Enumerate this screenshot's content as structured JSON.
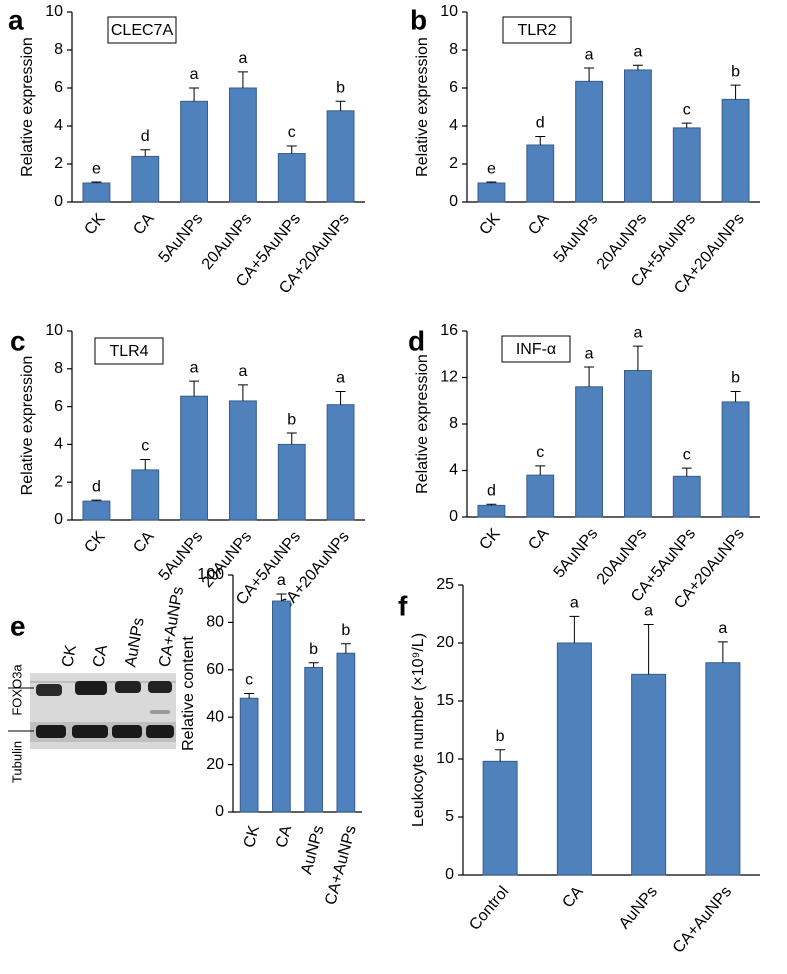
{
  "chart_data": [
    {
      "type": "bar",
      "panel": "a",
      "title": "CLEC7A",
      "y_label": "Relative expression",
      "color": "#4f81bd",
      "categories": [
        "CK",
        "CA",
        "5AuNPs",
        "20AuNPs",
        "CA+5AuNPs",
        "CA+20AuNPs"
      ],
      "values": [
        1,
        2.4,
        5.3,
        6.0,
        2.55,
        4.8
      ],
      "errors": [
        0.05,
        0.35,
        0.7,
        0.85,
        0.4,
        0.5
      ],
      "annotations": [
        "e",
        "d",
        "a",
        "a",
        "c",
        "b"
      ],
      "ylim": [
        0,
        10
      ],
      "yticks": [
        0,
        2,
        4,
        6,
        8,
        10
      ]
    },
    {
      "type": "bar",
      "panel": "b",
      "title": "TLR2",
      "y_label": "Relative expression",
      "color": "#4f81bd",
      "categories": [
        "CK",
        "CA",
        "5AuNPs",
        "20AuNPs",
        "CA+5AuNPs",
        "CA+20AuNPs"
      ],
      "values": [
        1,
        3.0,
        6.35,
        6.95,
        3.9,
        5.4
      ],
      "errors": [
        0.05,
        0.45,
        0.7,
        0.25,
        0.25,
        0.75
      ],
      "annotations": [
        "e",
        "d",
        "a",
        "a",
        "c",
        "b"
      ],
      "ylim": [
        0,
        10
      ],
      "yticks": [
        0,
        2,
        4,
        6,
        8,
        10
      ]
    },
    {
      "type": "bar",
      "panel": "c",
      "title": "TLR4",
      "y_label": "Relative expression",
      "color": "#4f81bd",
      "categories": [
        "CK",
        "CA",
        "5AuNPs",
        "20AuNPs",
        "CA+5AuNPs",
        "CA+20AuNPs"
      ],
      "values": [
        1,
        2.65,
        6.55,
        6.3,
        4.0,
        6.1
      ],
      "errors": [
        0.05,
        0.55,
        0.8,
        0.85,
        0.6,
        0.7
      ],
      "annotations": [
        "d",
        "c",
        "a",
        "a",
        "b",
        "a"
      ],
      "ylim": [
        0,
        10
      ],
      "yticks": [
        0,
        2,
        4,
        6,
        8,
        10
      ]
    },
    {
      "type": "bar",
      "panel": "d",
      "title": "INF-α",
      "y_label": "Relative expression",
      "color": "#4f81bd",
      "categories": [
        "CK",
        "CA",
        "5AuNPs",
        "20AuNPs",
        "CA+5AuNPs",
        "CA+20AuNPs"
      ],
      "values": [
        1,
        3.6,
        11.2,
        12.6,
        3.5,
        9.9
      ],
      "errors": [
        0.1,
        0.8,
        1.7,
        2.1,
        0.7,
        0.9
      ],
      "annotations": [
        "d",
        "c",
        "a",
        "a",
        "c",
        "b"
      ],
      "ylim": [
        0,
        16
      ],
      "yticks": [
        0,
        4,
        8,
        12,
        16
      ]
    },
    {
      "type": "bar",
      "panel": "e",
      "y_label": "Relative content",
      "color": "#4f81bd",
      "categories": [
        "CK",
        "CA",
        "AuNPs",
        "CA+AuNPs"
      ],
      "values": [
        48,
        89,
        61,
        67
      ],
      "errors": [
        2,
        3,
        2,
        4
      ],
      "annotations": [
        "c",
        "a",
        "b",
        "b"
      ],
      "ylim": [
        0,
        100
      ],
      "yticks": [
        0,
        20,
        40,
        60,
        80,
        100
      ],
      "blot": {
        "lanes": [
          "CK",
          "CA",
          "AuNPs",
          "CA+AuNPs"
        ],
        "proteins": [
          "FOXO3a",
          "Tubulin"
        ]
      }
    },
    {
      "type": "bar",
      "panel": "f",
      "y_label": "Leukocyte number (×10⁹/L)",
      "color": "#4f81bd",
      "categories": [
        "Control",
        "CA",
        "AuNPs",
        "CA+AuNPs"
      ],
      "values": [
        9.8,
        20,
        17.3,
        18.3
      ],
      "errors": [
        1,
        2.3,
        4.3,
        1.8
      ],
      "annotations": [
        "b",
        "a",
        "a",
        "a"
      ],
      "ylim": [
        0,
        25
      ],
      "yticks": [
        0,
        5,
        10,
        15,
        20,
        25
      ]
    }
  ]
}
